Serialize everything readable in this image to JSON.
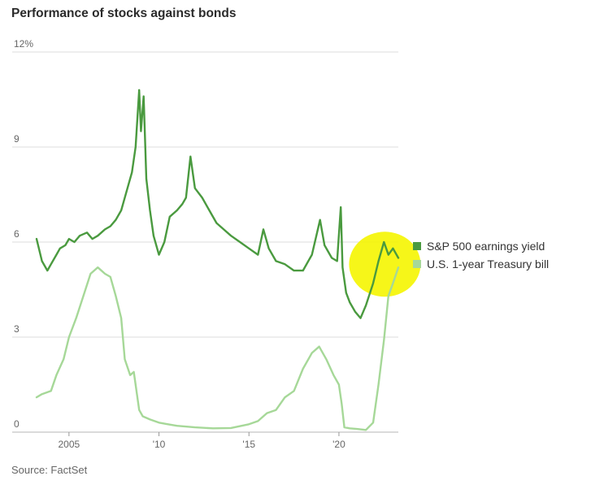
{
  "title": "Performance of stocks against bonds",
  "source": "Source: FactSet",
  "chart_data": {
    "type": "line",
    "title": "Performance of stocks against bonds",
    "xlabel": "",
    "ylabel": "",
    "xlim": [
      2003.2,
      2023.3
    ],
    "ylim": [
      0,
      12
    ],
    "y_ticks": [
      {
        "value": 0,
        "label": "0"
      },
      {
        "value": 3,
        "label": "3"
      },
      {
        "value": 6,
        "label": "6"
      },
      {
        "value": 9,
        "label": "9"
      },
      {
        "value": 12,
        "label": "12%"
      }
    ],
    "x_ticks": [
      {
        "value": 2005,
        "label": "2005"
      },
      {
        "value": 2010,
        "label": "'10"
      },
      {
        "value": 2015,
        "label": "'15"
      },
      {
        "value": 2020,
        "label": "'20"
      }
    ],
    "grid": "horizontal",
    "legend_position": "right",
    "highlight": {
      "color": "#f5f500",
      "note": "highlighted region around latest values"
    },
    "series": [
      {
        "name": "S&P 500 earnings yield",
        "color": "#4a9a3f",
        "x": [
          2003.2,
          2003.5,
          2003.8,
          2004.0,
          2004.3,
          2004.5,
          2004.8,
          2005.0,
          2005.3,
          2005.6,
          2006.0,
          2006.3,
          2006.6,
          2007.0,
          2007.3,
          2007.6,
          2007.9,
          2008.2,
          2008.5,
          2008.7,
          2008.9,
          2009.0,
          2009.15,
          2009.3,
          2009.5,
          2009.7,
          2010.0,
          2010.3,
          2010.6,
          2011.0,
          2011.3,
          2011.5,
          2011.75,
          2012.0,
          2012.4,
          2012.8,
          2013.2,
          2013.6,
          2014.0,
          2014.5,
          2015.0,
          2015.5,
          2015.8,
          2016.1,
          2016.5,
          2017.0,
          2017.5,
          2018.0,
          2018.5,
          2018.95,
          2019.2,
          2019.6,
          2019.9,
          2020.1,
          2020.2,
          2020.4,
          2020.6,
          2020.9,
          2021.2,
          2021.5,
          2021.9,
          2022.2,
          2022.5,
          2022.75,
          2023.0,
          2023.3
        ],
        "values": [
          6.1,
          5.4,
          5.1,
          5.3,
          5.6,
          5.8,
          5.9,
          6.1,
          6.0,
          6.2,
          6.3,
          6.1,
          6.2,
          6.4,
          6.5,
          6.7,
          7.0,
          7.6,
          8.2,
          9.0,
          10.8,
          9.5,
          10.6,
          8.0,
          7.0,
          6.2,
          5.6,
          6.0,
          6.8,
          7.0,
          7.2,
          7.4,
          8.7,
          7.7,
          7.4,
          7.0,
          6.6,
          6.4,
          6.2,
          6.0,
          5.8,
          5.6,
          6.4,
          5.8,
          5.4,
          5.3,
          5.1,
          5.1,
          5.6,
          6.7,
          5.9,
          5.5,
          5.4,
          7.1,
          5.2,
          4.4,
          4.1,
          3.8,
          3.6,
          4.0,
          4.7,
          5.4,
          6.0,
          5.6,
          5.8,
          5.5
        ]
      },
      {
        "name": "U.S. 1-year Treasury bill",
        "color": "#a6d898",
        "x": [
          2003.2,
          2003.5,
          2004.0,
          2004.3,
          2004.7,
          2005.0,
          2005.4,
          2005.8,
          2006.2,
          2006.6,
          2007.0,
          2007.3,
          2007.6,
          2007.9,
          2008.1,
          2008.4,
          2008.6,
          2008.9,
          2009.1,
          2009.5,
          2010.0,
          2010.5,
          2011.0,
          2012.0,
          2013.0,
          2014.0,
          2015.0,
          2015.5,
          2016.0,
          2016.5,
          2017.0,
          2017.5,
          2018.0,
          2018.5,
          2018.9,
          2019.3,
          2019.7,
          2020.0,
          2020.15,
          2020.3,
          2020.6,
          2021.0,
          2021.5,
          2021.9,
          2022.2,
          2022.5,
          2022.75,
          2023.0,
          2023.3
        ],
        "values": [
          1.1,
          1.2,
          1.3,
          1.8,
          2.3,
          3.0,
          3.6,
          4.3,
          5.0,
          5.2,
          5.0,
          4.9,
          4.3,
          3.6,
          2.3,
          1.8,
          1.9,
          0.7,
          0.5,
          0.4,
          0.3,
          0.25,
          0.2,
          0.15,
          0.12,
          0.13,
          0.25,
          0.35,
          0.6,
          0.7,
          1.1,
          1.3,
          2.0,
          2.5,
          2.7,
          2.3,
          1.8,
          1.5,
          0.9,
          0.15,
          0.12,
          0.1,
          0.07,
          0.3,
          1.5,
          2.9,
          4.3,
          4.7,
          5.2
        ]
      }
    ]
  }
}
